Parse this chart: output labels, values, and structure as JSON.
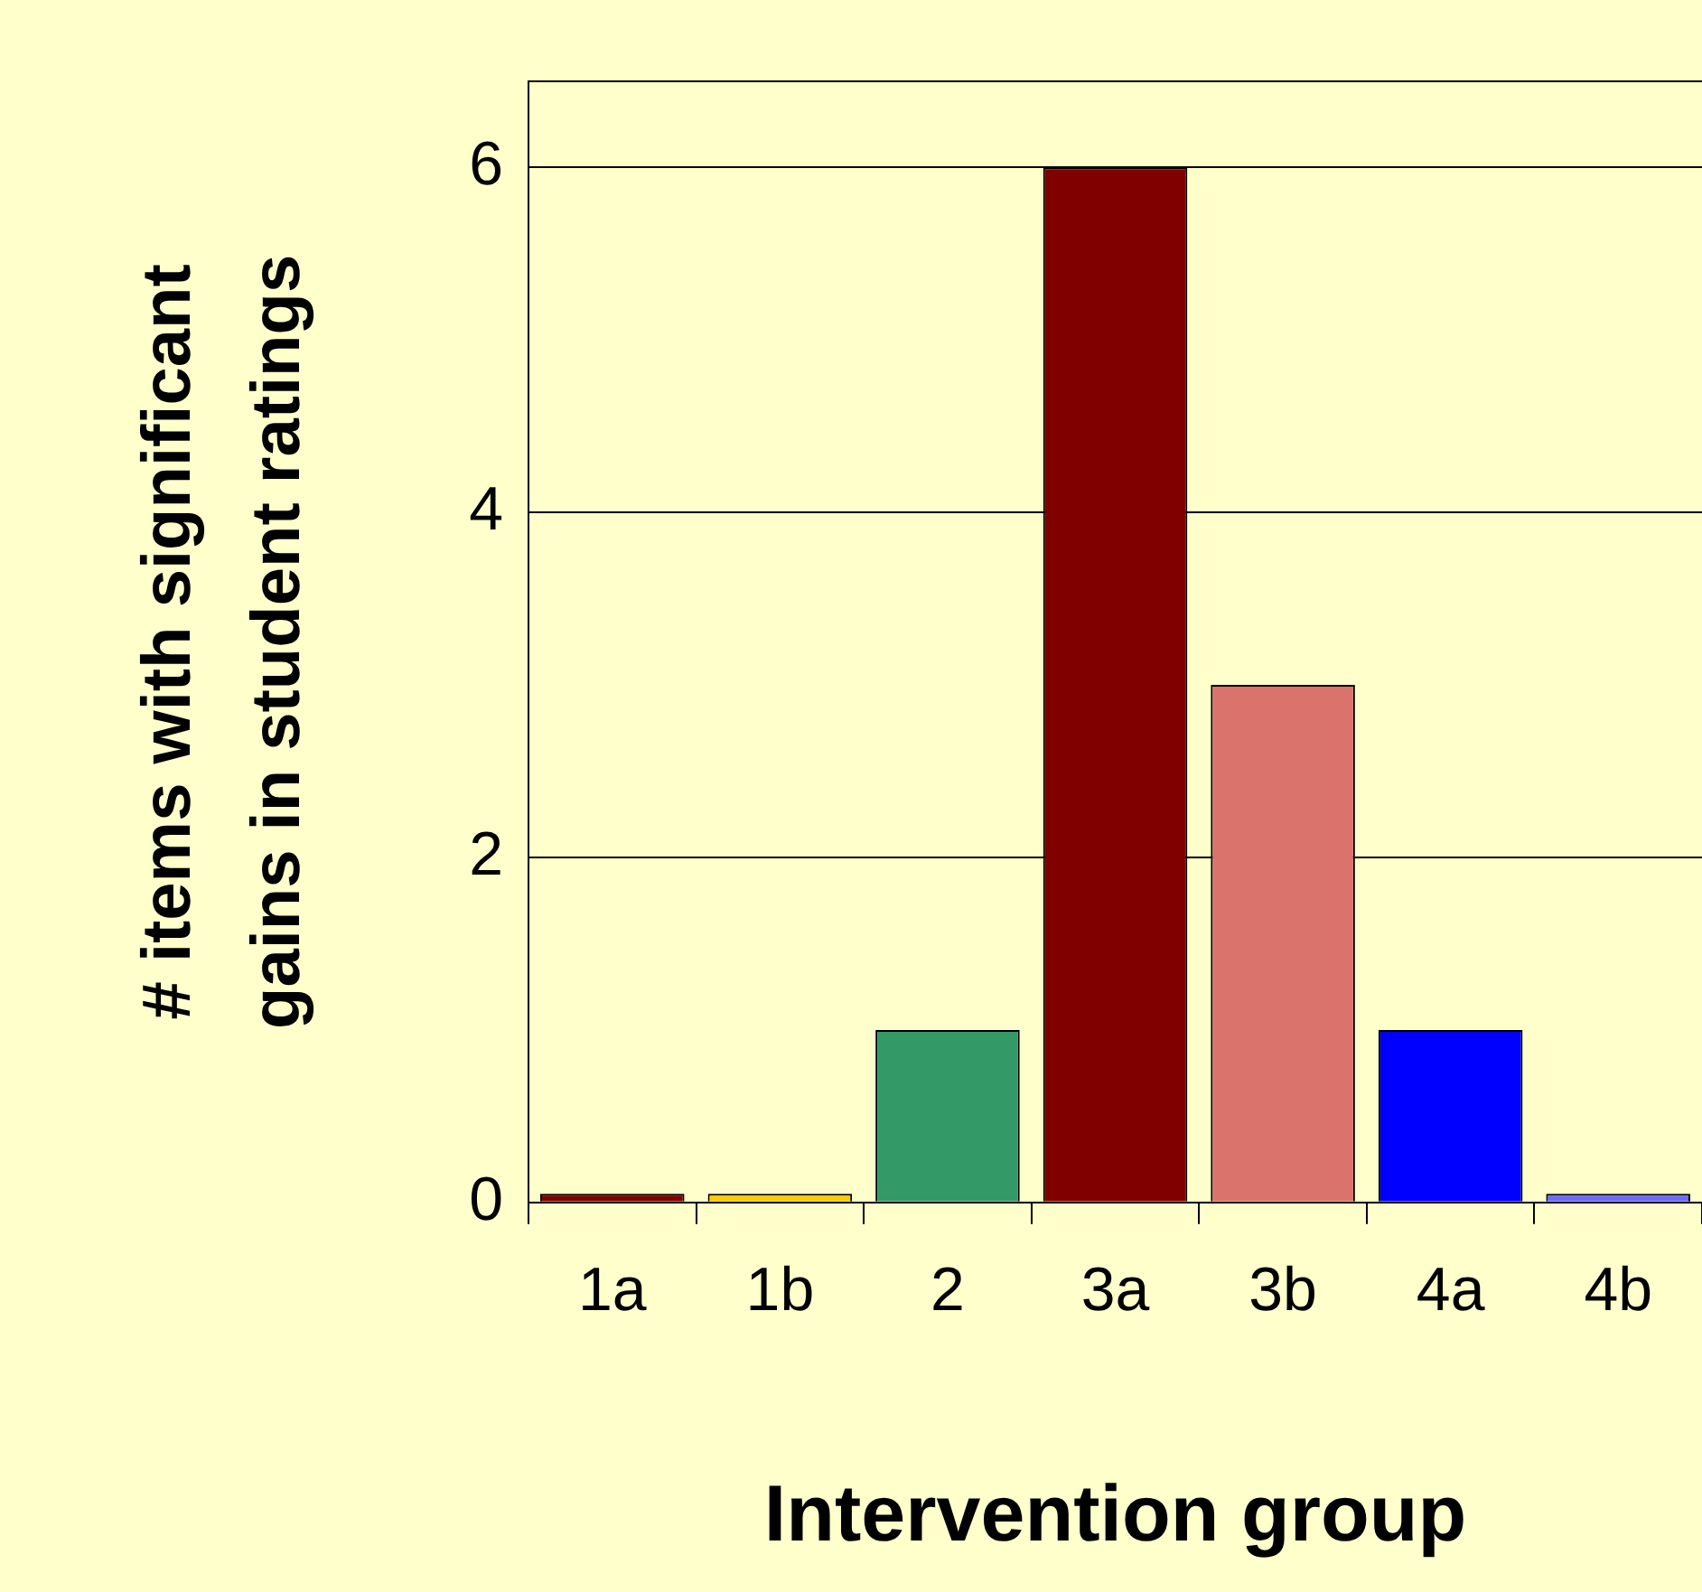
{
  "chart_data": {
    "type": "bar",
    "xlabel": "Intervention group",
    "ylabel": "# items with significant gains in student ratings",
    "categories": [
      "1a",
      "1b",
      "2",
      "3a",
      "3b",
      "4a",
      "4b"
    ],
    "values": [
      0.05,
      0.05,
      1,
      6,
      3,
      1,
      0.05
    ],
    "colors": [
      "#800000",
      "#ffcc00",
      "#339966",
      "#800000",
      "#d9736b",
      "#0000ff",
      "#6b6bff"
    ],
    "ylim": [
      0,
      6.5
    ],
    "yticks": [
      0,
      2,
      4,
      6
    ],
    "grid": "y",
    "legend": false
  }
}
